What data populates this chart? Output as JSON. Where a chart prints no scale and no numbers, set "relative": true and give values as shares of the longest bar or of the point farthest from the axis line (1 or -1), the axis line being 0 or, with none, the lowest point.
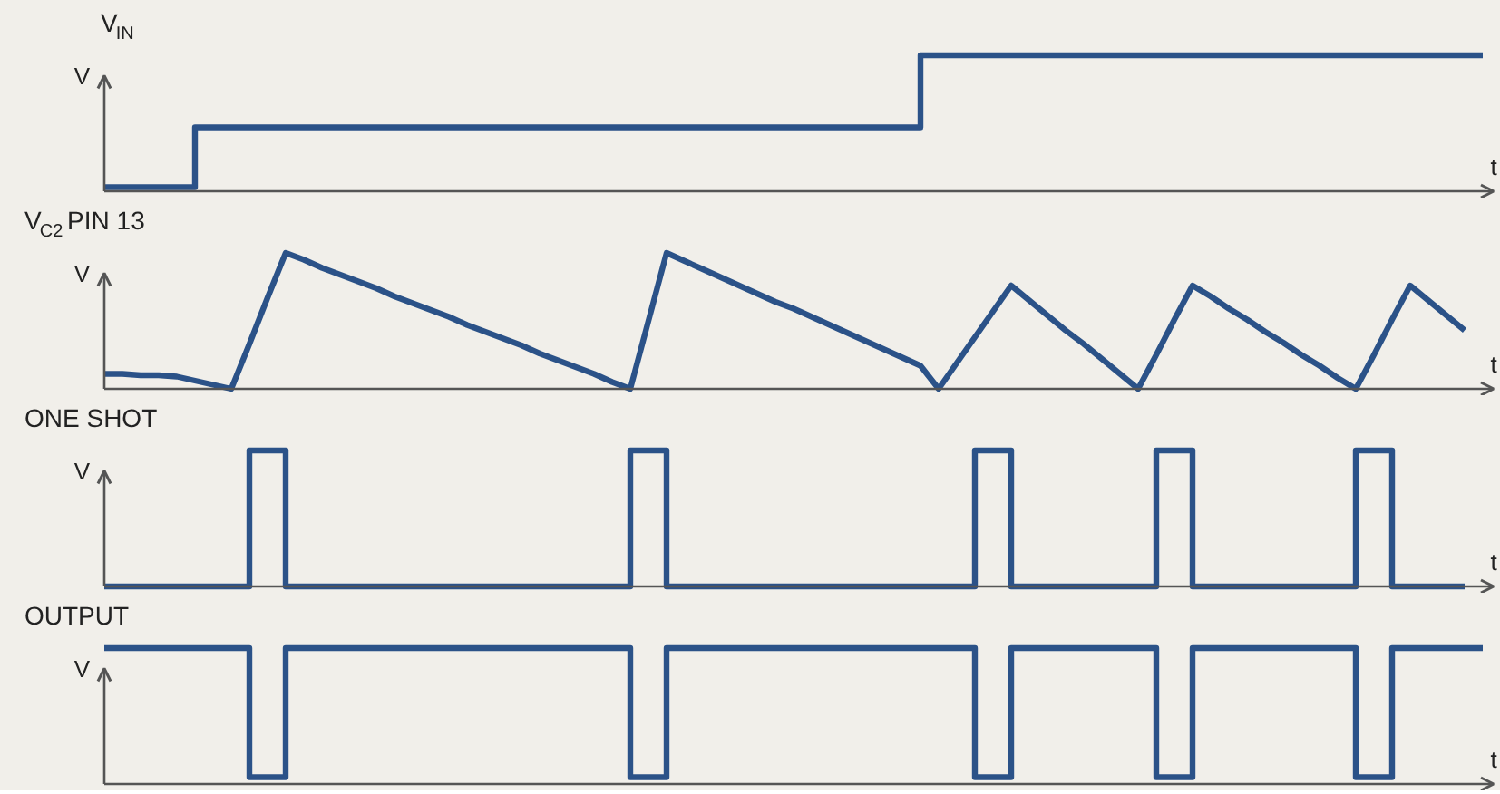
{
  "chart_data": [
    {
      "type": "step",
      "title": "V$_{IN}$",
      "ylabel": "V",
      "xlabel": "t",
      "relative": true,
      "categories": [
        null,
        null,
        null,
        null,
        null,
        null,
        null,
        null,
        null,
        null,
        null,
        null,
        null,
        null,
        null,
        null,
        null,
        null,
        null,
        null,
        null,
        null,
        null,
        null,
        null,
        null,
        null,
        null,
        null,
        null,
        null,
        null,
        null,
        null,
        null,
        null,
        null,
        null,
        null,
        null,
        null,
        null,
        null,
        null,
        null,
        null,
        null,
        null,
        null,
        null,
        null,
        null,
        null,
        null,
        null,
        null,
        null,
        null,
        null,
        null,
        null,
        null,
        null,
        null,
        null,
        null,
        null,
        null,
        null,
        null,
        null,
        null,
        null,
        null,
        null,
        null,
        null
      ],
      "series": [
        {
          "color": "#2b5288",
          "values": [
            0.03,
            0.03,
            0.03,
            0.03,
            0.03,
            0.47,
            0.47,
            0.47,
            0.47,
            0.47,
            0.47,
            0.47,
            0.47,
            0.47,
            0.47,
            0.47,
            0.47,
            0.47,
            0.47,
            0.47,
            0.47,
            0.47,
            0.47,
            0.47,
            0.47,
            0.47,
            0.47,
            0.47,
            0.47,
            0.47,
            0.47,
            0.47,
            0.47,
            0.47,
            0.47,
            0.47,
            0.47,
            0.47,
            0.47,
            0.47,
            0.47,
            0.47,
            0.47,
            0.47,
            0.47,
            1,
            1,
            1,
            1,
            1,
            1,
            1,
            1,
            1,
            1,
            1,
            1,
            1,
            1,
            1,
            1,
            1,
            1,
            1,
            1,
            1,
            1,
            1,
            1,
            1,
            1,
            1,
            1,
            1,
            1,
            1,
            1
          ]
        }
      ]
    },
    {
      "type": "line",
      "title": "V$_{C2}$ PIN 13",
      "ylabel": "V",
      "xlabel": "t",
      "relative": true,
      "categories": [
        null,
        null,
        null,
        null,
        null,
        null,
        null,
        null,
        null,
        null,
        null,
        null,
        null,
        null,
        null,
        null,
        null,
        null,
        null,
        null,
        null,
        null,
        null,
        null,
        null,
        null,
        null,
        null,
        null,
        null,
        null,
        null,
        null,
        null,
        null,
        null,
        null,
        null,
        null,
        null,
        null,
        null,
        null,
        null,
        null,
        null,
        null,
        null,
        null,
        null,
        null,
        null,
        null,
        null,
        null,
        null,
        null,
        null,
        null,
        null,
        null,
        null,
        null,
        null,
        null,
        null,
        null,
        null,
        null,
        null,
        null,
        null,
        null,
        null,
        null,
        null,
        null
      ],
      "series": [
        {
          "color": "#2b5288",
          "values": [
            0.11,
            0.11,
            0.1,
            0.1,
            0.09,
            0.06,
            0.03,
            0,
            0.33,
            0.67,
            1,
            0.95,
            0.89,
            0.84,
            0.79,
            0.74,
            0.68,
            0.63,
            0.58,
            0.53,
            0.47,
            0.42,
            0.37,
            0.32,
            0.26,
            0.21,
            0.16,
            0.11,
            0.05,
            0,
            0.5,
            1,
            0.94,
            0.88,
            0.82,
            0.76,
            0.7,
            0.64,
            0.59,
            0.53,
            0.47,
            0.41,
            0.35,
            0.29,
            0.23,
            0.17,
            0,
            0.19,
            0.38,
            0.57,
            0.76,
            0.65,
            0.54,
            0.43,
            0.33,
            0.22,
            0.11,
            0,
            0.25,
            0.51,
            0.76,
            0.68,
            0.59,
            0.51,
            0.42,
            0.34,
            0.25,
            0.17,
            0.08,
            0,
            0.25,
            0.51,
            0.76,
            0.65,
            0.54,
            0.43,
            null
          ]
        }
      ]
    },
    {
      "type": "step",
      "title": "ONE SHOT",
      "ylabel": "V",
      "xlabel": "t",
      "relative": true,
      "categories": [
        null,
        null,
        null,
        null,
        null,
        null,
        null,
        null,
        null,
        null,
        null,
        null,
        null,
        null,
        null,
        null,
        null,
        null,
        null,
        null,
        null,
        null,
        null,
        null,
        null,
        null,
        null,
        null,
        null,
        null,
        null,
        null,
        null,
        null,
        null,
        null,
        null,
        null,
        null,
        null,
        null,
        null,
        null,
        null,
        null,
        null,
        null,
        null,
        null,
        null,
        null,
        null,
        null,
        null,
        null,
        null,
        null,
        null,
        null,
        null,
        null,
        null,
        null,
        null,
        null,
        null,
        null,
        null,
        null,
        null,
        null,
        null,
        null,
        null,
        null,
        null,
        null
      ],
      "series": [
        {
          "color": "#2b5288",
          "values": [
            0,
            0,
            0,
            0,
            0,
            0,
            0,
            0,
            1,
            1,
            0,
            0,
            0,
            0,
            0,
            0,
            0,
            0,
            0,
            0,
            0,
            0,
            0,
            0,
            0,
            0,
            0,
            0,
            0,
            1,
            1,
            0,
            0,
            0,
            0,
            0,
            0,
            0,
            0,
            0,
            0,
            0,
            0,
            0,
            0,
            0,
            0,
            0,
            1,
            1,
            0,
            0,
            0,
            0,
            0,
            0,
            0,
            0,
            1,
            1,
            0,
            0,
            0,
            0,
            0,
            0,
            0,
            0,
            0,
            1,
            1,
            0,
            0,
            0,
            0,
            0,
            null
          ]
        }
      ]
    },
    {
      "type": "step",
      "title": "OUTPUT",
      "ylabel": "V",
      "xlabel": "t",
      "relative": true,
      "categories": [
        null,
        null,
        null,
        null,
        null,
        null,
        null,
        null,
        null,
        null,
        null,
        null,
        null,
        null,
        null,
        null,
        null,
        null,
        null,
        null,
        null,
        null,
        null,
        null,
        null,
        null,
        null,
        null,
        null,
        null,
        null,
        null,
        null,
        null,
        null,
        null,
        null,
        null,
        null,
        null,
        null,
        null,
        null,
        null,
        null,
        null,
        null,
        null,
        null,
        null,
        null,
        null,
        null,
        null,
        null,
        null,
        null,
        null,
        null,
        null,
        null,
        null,
        null,
        null,
        null,
        null,
        null,
        null,
        null,
        null,
        null,
        null,
        null,
        null,
        null,
        null,
        null
      ],
      "series": [
        {
          "color": "#2b5288",
          "values": [
            1,
            1,
            1,
            1,
            1,
            1,
            1,
            1,
            0.05,
            0.05,
            1,
            1,
            1,
            1,
            1,
            1,
            1,
            1,
            1,
            1,
            1,
            1,
            1,
            1,
            1,
            1,
            1,
            1,
            1,
            0.05,
            0.05,
            1,
            1,
            1,
            1,
            1,
            1,
            1,
            1,
            1,
            1,
            1,
            1,
            1,
            1,
            1,
            1,
            1,
            0.05,
            0.05,
            1,
            1,
            1,
            1,
            1,
            1,
            1,
            1,
            0.05,
            0.05,
            1,
            1,
            1,
            1,
            1,
            1,
            1,
            1,
            1,
            0.05,
            0.05,
            1,
            1,
            1,
            1,
            1,
            1
          ]
        }
      ]
    }
  ]
}
